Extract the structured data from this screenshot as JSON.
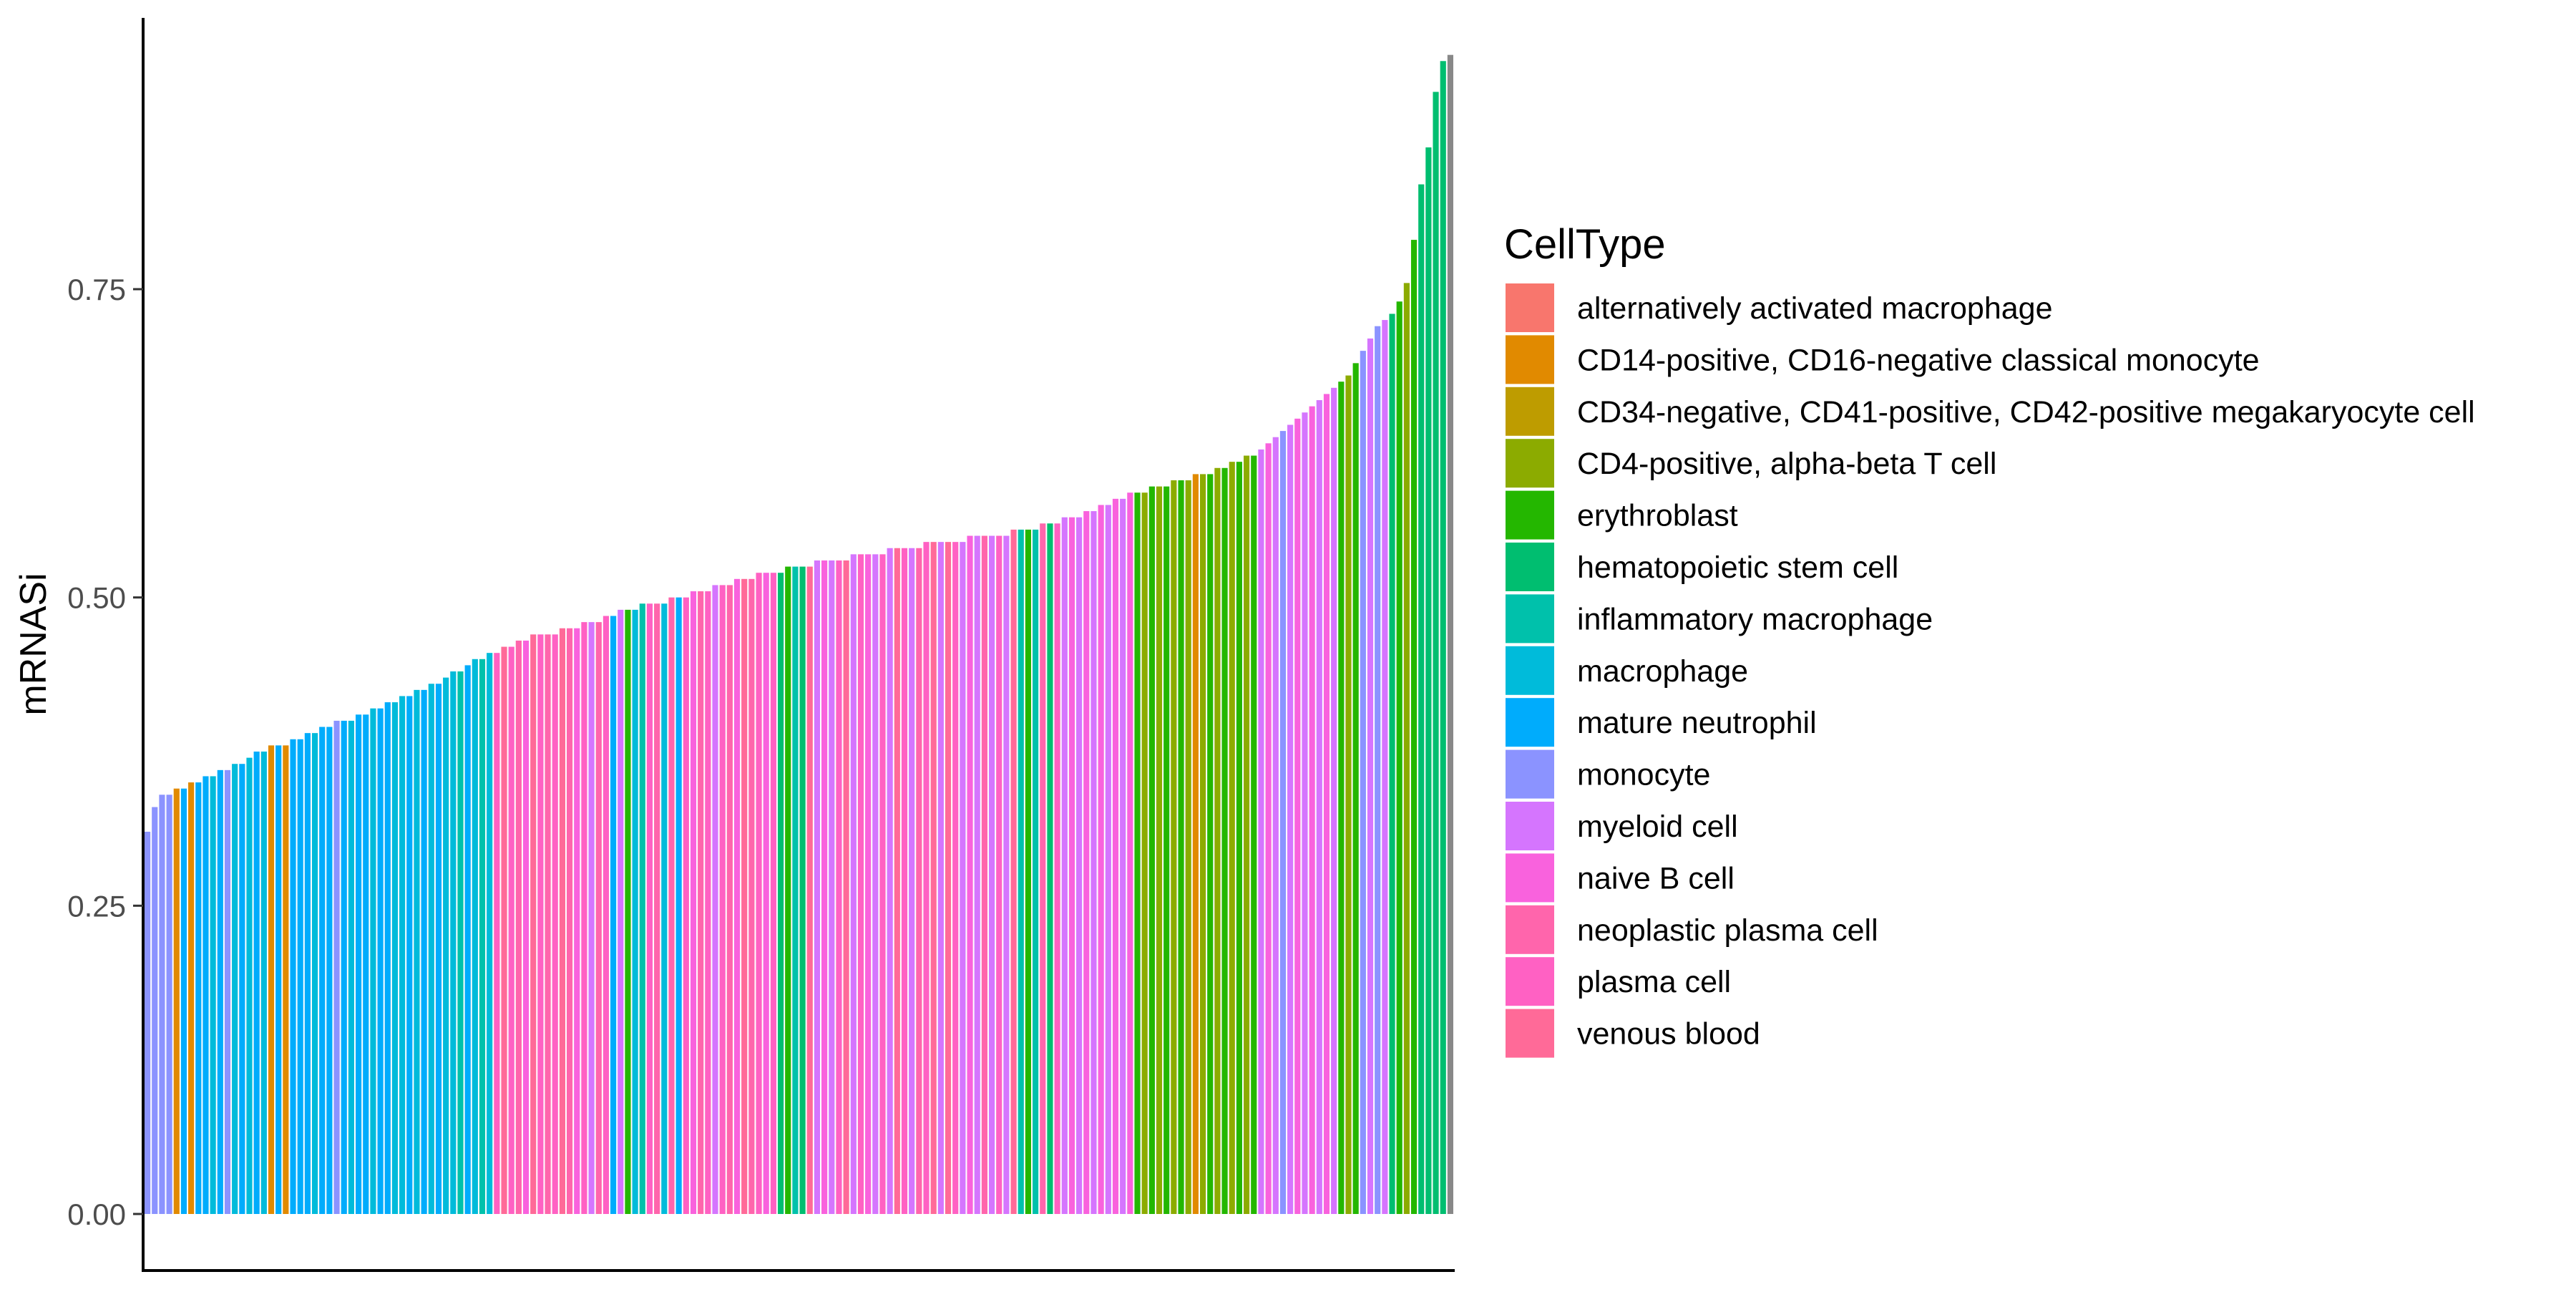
{
  "chart_data": {
    "type": "bar",
    "title": "",
    "xlabel": "",
    "ylabel": "mRNASi",
    "ylim": [
      0,
      0.97
    ],
    "yticks": [
      {
        "value": 0.0,
        "label": "0.00"
      },
      {
        "value": 0.25,
        "label": "0.25"
      },
      {
        "value": 0.5,
        "label": "0.50"
      },
      {
        "value": 0.75,
        "label": "0.75"
      }
    ],
    "grid": false,
    "legend_position": "right",
    "legend": {
      "title": "CellType",
      "entries": [
        {
          "label": "alternatively activated macrophage",
          "color": "#F8766D"
        },
        {
          "label": "CD14-positive, CD16-negative classical monocyte",
          "color": "#E18A00"
        },
        {
          "label": "CD34-negative, CD41-positive, CD42-positive megakaryocyte cell",
          "color": "#BE9C00"
        },
        {
          "label": "CD4-positive, alpha-beta T cell",
          "color": "#8CAB00"
        },
        {
          "label": "erythroblast",
          "color": "#24B700"
        },
        {
          "label": "hematopoietic stem cell",
          "color": "#00BE70"
        },
        {
          "label": "inflammatory macrophage",
          "color": "#00C1AB"
        },
        {
          "label": "macrophage",
          "color": "#00BBDA"
        },
        {
          "label": "mature neutrophil",
          "color": "#00ACFC"
        },
        {
          "label": "monocyte",
          "color": "#8B93FF"
        },
        {
          "label": "myeloid cell",
          "color": "#D575FE"
        },
        {
          "label": "naive B cell",
          "color": "#F962DD"
        },
        {
          "label": "neoplastic plasma cell",
          "color": "#FF65AC"
        },
        {
          "label": "plasma cell",
          "color": "#FF61C3"
        },
        {
          "label": "venous blood",
          "color": "#FF6A98"
        }
      ]
    },
    "series": [
      {
        "values": [
          0.31,
          0.33,
          0.34,
          0.34,
          0.345,
          0.345,
          0.35,
          0.35,
          0.355,
          0.355,
          0.36,
          0.36,
          0.365,
          0.365,
          0.37,
          0.375,
          0.375,
          0.38,
          0.38,
          0.38,
          0.385,
          0.385,
          0.39,
          0.39,
          0.395,
          0.395,
          0.4,
          0.4,
          0.4,
          0.405,
          0.405,
          0.41,
          0.41,
          0.415,
          0.415,
          0.42,
          0.42,
          0.425,
          0.425,
          0.43,
          0.43,
          0.435,
          0.44,
          0.44,
          0.445,
          0.45,
          0.45,
          0.455,
          0.455,
          0.46,
          0.46,
          0.465,
          0.465,
          0.47,
          0.47,
          0.47,
          0.47,
          0.475,
          0.475,
          0.475,
          0.48,
          0.48,
          0.48,
          0.485,
          0.485,
          0.49,
          0.49,
          0.49,
          0.495,
          0.495,
          0.495,
          0.495,
          0.5,
          0.5,
          0.5,
          0.505,
          0.505,
          0.505,
          0.51,
          0.51,
          0.51,
          0.515,
          0.515,
          0.515,
          0.52,
          0.52,
          0.52,
          0.52,
          0.525,
          0.525,
          0.525,
          0.525,
          0.53,
          0.53,
          0.53,
          0.53,
          0.53,
          0.535,
          0.535,
          0.535,
          0.535,
          0.535,
          0.54,
          0.54,
          0.54,
          0.54,
          0.54,
          0.545,
          0.545,
          0.545,
          0.545,
          0.545,
          0.545,
          0.55,
          0.55,
          0.55,
          0.55,
          0.55,
          0.55,
          0.555,
          0.555,
          0.555,
          0.555,
          0.56,
          0.56,
          0.56,
          0.565,
          0.565,
          0.565,
          0.57,
          0.57,
          0.575,
          0.575,
          0.58,
          0.58,
          0.585,
          0.585,
          0.585,
          0.59,
          0.59,
          0.59,
          0.595,
          0.595,
          0.595,
          0.6,
          0.6,
          0.6,
          0.605,
          0.605,
          0.61,
          0.61,
          0.615,
          0.615,
          0.62,
          0.625,
          0.63,
          0.635,
          0.64,
          0.645,
          0.65,
          0.655,
          0.66,
          0.665,
          0.67,
          0.675,
          0.68,
          0.69,
          0.7,
          0.71,
          0.72,
          0.725,
          0.73,
          0.74,
          0.755,
          0.79,
          0.835,
          0.865,
          0.91,
          0.935,
          0.94
        ],
        "types": [
          9,
          9,
          9,
          9,
          1,
          8,
          1,
          8,
          8,
          7,
          8,
          9,
          7,
          8,
          7,
          8,
          7,
          1,
          8,
          1,
          8,
          8,
          8,
          7,
          8,
          8,
          9,
          8,
          7,
          8,
          8,
          7,
          8,
          8,
          7,
          7,
          8,
          7,
          8,
          7,
          8,
          7,
          7,
          6,
          8,
          7,
          6,
          7,
          13,
          14,
          13,
          12,
          11,
          14,
          13,
          12,
          13,
          14,
          12,
          11,
          13,
          10,
          12,
          13,
          8,
          10,
          4,
          7,
          6,
          13,
          12,
          7,
          12,
          8,
          13,
          11,
          12,
          13,
          10,
          13,
          12,
          11,
          14,
          12,
          13,
          11,
          13,
          5,
          4,
          6,
          5,
          14,
          10,
          11,
          10,
          13,
          14,
          10,
          13,
          11,
          10,
          13,
          10,
          14,
          13,
          10,
          12,
          13,
          14,
          10,
          14,
          13,
          10,
          11,
          10,
          12,
          10,
          13,
          10,
          14,
          6,
          4,
          6,
          12,
          5,
          13,
          10,
          11,
          10,
          11,
          10,
          11,
          10,
          11,
          10,
          11,
          4,
          3,
          4,
          3,
          4,
          3,
          4,
          3,
          1,
          3,
          4,
          3,
          4,
          3,
          4,
          3,
          4,
          10,
          11,
          10,
          9,
          10,
          11,
          10,
          11,
          10,
          11,
          10,
          4,
          3,
          4,
          9,
          10,
          9,
          10,
          5,
          4,
          3,
          4,
          5,
          5,
          5,
          5
        ]
      }
    ]
  }
}
